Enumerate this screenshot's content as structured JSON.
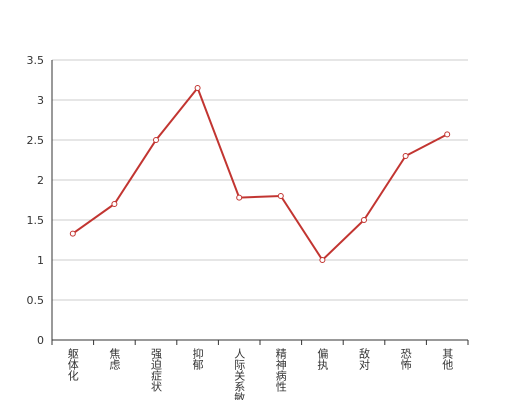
{
  "chart_data": {
    "type": "line",
    "categories": [
      "躯体化",
      "焦虑",
      "强迫症状",
      "抑郁",
      "人际关系敏感",
      "精神病性",
      "偏执",
      "敌对",
      "恐怖",
      "其他"
    ],
    "series": [
      {
        "color": "#c23531",
        "values": [
          1.33,
          1.7,
          2.5,
          3.15,
          1.78,
          1.8,
          1.0,
          1.5,
          2.3,
          2.57
        ]
      }
    ],
    "ylim": [
      0,
      3.5
    ],
    "yticks": [
      0,
      0.5,
      1,
      1.5,
      2,
      2.5,
      3,
      3.5
    ],
    "grid": true
  }
}
